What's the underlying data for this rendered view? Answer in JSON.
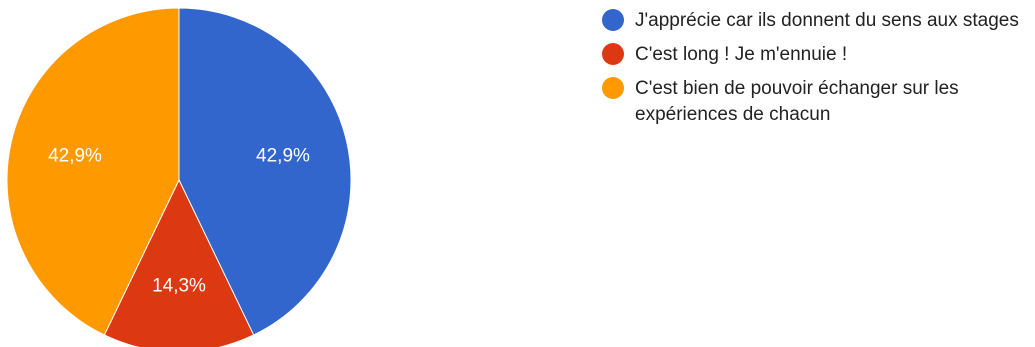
{
  "chart_data": {
    "type": "pie",
    "start_angle_deg": 90,
    "direction": "clockwise",
    "title": "",
    "slices": [
      {
        "label": "J'apprécie car ils donnent du sens aux stages",
        "value": 42.9,
        "display": "42,9%",
        "color": "#3366cc"
      },
      {
        "label": "C'est long ! Je m'ennuie !",
        "value": 14.3,
        "display": "14,3%",
        "color": "#dc3912"
      },
      {
        "label": "C'est bien de pouvoir échanger sur les expériences de chacun",
        "value": 42.9,
        "display": "42,9%",
        "color": "#ff9900"
      }
    ],
    "legend_position": "right"
  }
}
